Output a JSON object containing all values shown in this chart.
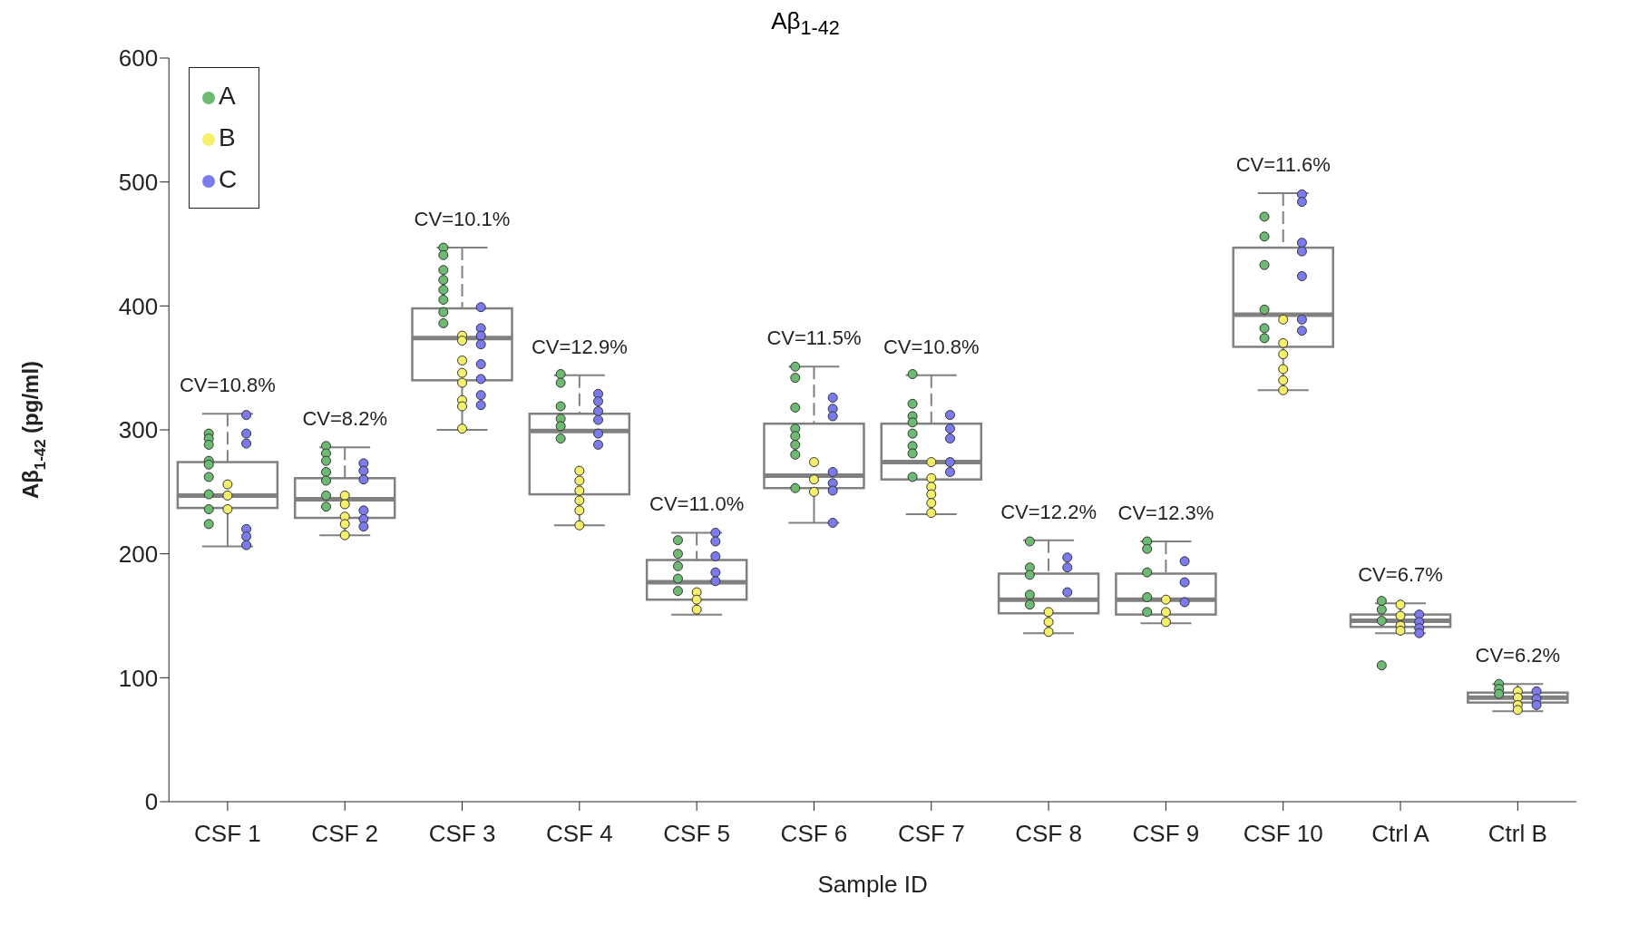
{
  "chart_data": {
    "type": "box",
    "title": "Aβ$_{1-42}$",
    "xlabel": "Sample ID",
    "ylabel": "Aβ$_{1-42}$ (pg/ml)",
    "categories": [
      "CSF 1",
      "CSF 2",
      "CSF 3",
      "CSF 4",
      "CSF 5",
      "CSF 6",
      "CSF 7",
      "CSF 8",
      "CSF 9",
      "CSF 10",
      "Ctrl A",
      "Ctrl B"
    ],
    "boxes": [
      {
        "low": 206,
        "q1": 237,
        "median": 247,
        "q3": 274,
        "high": 313
      },
      {
        "low": 215,
        "q1": 229,
        "median": 244,
        "q3": 261,
        "high": 286
      },
      {
        "low": 300,
        "q1": 340,
        "median": 374,
        "q3": 398,
        "high": 447
      },
      {
        "low": 223,
        "q1": 248,
        "median": 299,
        "q3": 313,
        "high": 344
      },
      {
        "low": 151,
        "q1": 163,
        "median": 177,
        "q3": 195,
        "high": 217
      },
      {
        "low": 225,
        "q1": 253,
        "median": 263,
        "q3": 305,
        "high": 351
      },
      {
        "low": 232,
        "q1": 260,
        "median": 274,
        "q3": 305,
        "high": 344
      },
      {
        "low": 136,
        "q1": 152,
        "median": 163,
        "q3": 184,
        "high": 211
      },
      {
        "low": 144,
        "q1": 151,
        "median": 163,
        "q3": 184,
        "high": 210
      },
      {
        "low": 332,
        "q1": 367,
        "median": 393,
        "q3": 447,
        "high": 491
      },
      {
        "low": 136,
        "q1": 141,
        "median": 146,
        "q3": 151,
        "high": 160
      },
      {
        "low": 73,
        "q1": 80,
        "median": 84,
        "q3": 88,
        "high": 95
      }
    ],
    "series": [
      {
        "name": "A",
        "type": "scatter",
        "color": "#6dbb73",
        "x": [
          "CSF 1",
          "CSF 1",
          "CSF 1",
          "CSF 1",
          "CSF 1",
          "CSF 1",
          "CSF 1",
          "CSF 1",
          "CSF 1",
          "CSF 2",
          "CSF 2",
          "CSF 2",
          "CSF 2",
          "CSF 2",
          "CSF 2",
          "CSF 2",
          "CSF 3",
          "CSF 3",
          "CSF 3",
          "CSF 3",
          "CSF 3",
          "CSF 3",
          "CSF 3",
          "CSF 3",
          "CSF 4",
          "CSF 4",
          "CSF 4",
          "CSF 4",
          "CSF 4",
          "CSF 4",
          "CSF 5",
          "CSF 5",
          "CSF 5",
          "CSF 5",
          "CSF 5",
          "CSF 6",
          "CSF 6",
          "CSF 6",
          "CSF 6",
          "CSF 6",
          "CSF 6",
          "CSF 6",
          "CSF 6",
          "CSF 7",
          "CSF 7",
          "CSF 7",
          "CSF 7",
          "CSF 7",
          "CSF 7",
          "CSF 7",
          "CSF 7",
          "CSF 8",
          "CSF 8",
          "CSF 8",
          "CSF 8",
          "CSF 8",
          "CSF 9",
          "CSF 9",
          "CSF 9",
          "CSF 9",
          "CSF 9",
          "CSF 10",
          "CSF 10",
          "CSF 10",
          "CSF 10",
          "CSF 10",
          "CSF 10",
          "Ctrl A",
          "Ctrl A",
          "Ctrl A",
          "Ctrl A",
          "Ctrl B",
          "Ctrl B",
          "Ctrl B"
        ],
        "values": [
          297,
          293,
          288,
          275,
          272,
          262,
          248,
          236,
          224,
          287,
          281,
          275,
          266,
          259,
          247,
          238,
          447,
          441,
          429,
          421,
          413,
          405,
          395,
          386,
          345,
          338,
          319,
          309,
          303,
          293,
          211,
          200,
          190,
          180,
          170,
          351,
          342,
          318,
          301,
          295,
          288,
          280,
          253,
          345,
          321,
          311,
          306,
          297,
          287,
          281,
          262,
          210,
          189,
          183,
          167,
          159,
          210,
          204,
          185,
          165,
          153,
          472,
          456,
          433,
          397,
          382,
          374,
          162,
          155,
          146,
          110,
          95,
          91,
          87
        ]
      },
      {
        "name": "B",
        "type": "scatter",
        "color": "#f5ef6a",
        "x": [
          "CSF 1",
          "CSF 1",
          "CSF 1",
          "CSF 2",
          "CSF 2",
          "CSF 2",
          "CSF 2",
          "CSF 2",
          "CSF 3",
          "CSF 3",
          "CSF 3",
          "CSF 3",
          "CSF 3",
          "CSF 3",
          "CSF 3",
          "CSF 3",
          "CSF 4",
          "CSF 4",
          "CSF 4",
          "CSF 4",
          "CSF 4",
          "CSF 4",
          "CSF 5",
          "CSF 5",
          "CSF 5",
          "CSF 6",
          "CSF 6",
          "CSF 6",
          "CSF 7",
          "CSF 7",
          "CSF 7",
          "CSF 7",
          "CSF 7",
          "CSF 7",
          "CSF 8",
          "CSF 8",
          "CSF 8",
          "CSF 9",
          "CSF 9",
          "CSF 9",
          "CSF 10",
          "CSF 10",
          "CSF 10",
          "CSF 10",
          "CSF 10",
          "CSF 10",
          "Ctrl A",
          "Ctrl A",
          "Ctrl A",
          "Ctrl A",
          "Ctrl B",
          "Ctrl B",
          "Ctrl B",
          "Ctrl B"
        ],
        "values": [
          256,
          247,
          236,
          247,
          240,
          230,
          224,
          215,
          376,
          372,
          356,
          346,
          338,
          324,
          319,
          301,
          267,
          259,
          251,
          243,
          235,
          223,
          169,
          163,
          155,
          274,
          260,
          250,
          274,
          261,
          254,
          248,
          241,
          233,
          153,
          145,
          137,
          163,
          153,
          145,
          389,
          370,
          361,
          349,
          340,
          332,
          159,
          150,
          142,
          138,
          89,
          84,
          78,
          74
        ]
      },
      {
        "name": "C",
        "type": "scatter",
        "color": "#7b7bef",
        "x": [
          "CSF 1",
          "CSF 1",
          "CSF 1",
          "CSF 1",
          "CSF 1",
          "CSF 1",
          "CSF 2",
          "CSF 2",
          "CSF 2",
          "CSF 2",
          "CSF 2",
          "CSF 2",
          "CSF 3",
          "CSF 3",
          "CSF 3",
          "CSF 3",
          "CSF 3",
          "CSF 3",
          "CSF 3",
          "CSF 3",
          "CSF 4",
          "CSF 4",
          "CSF 4",
          "CSF 4",
          "CSF 4",
          "CSF 4",
          "CSF 5",
          "CSF 5",
          "CSF 5",
          "CSF 5",
          "CSF 5",
          "CSF 6",
          "CSF 6",
          "CSF 6",
          "CSF 6",
          "CSF 6",
          "CSF 6",
          "CSF 6",
          "CSF 7",
          "CSF 7",
          "CSF 7",
          "CSF 7",
          "CSF 7",
          "CSF 8",
          "CSF 8",
          "CSF 8",
          "CSF 9",
          "CSF 9",
          "CSF 9",
          "CSF 10",
          "CSF 10",
          "CSF 10",
          "CSF 10",
          "CSF 10",
          "CSF 10",
          "CSF 10",
          "Ctrl A",
          "Ctrl A",
          "Ctrl A",
          "Ctrl A",
          "Ctrl B",
          "Ctrl B",
          "Ctrl B"
        ],
        "values": [
          312,
          297,
          289,
          220,
          214,
          207,
          273,
          267,
          260,
          235,
          228,
          222,
          399,
          382,
          376,
          369,
          353,
          341,
          328,
          320,
          329,
          323,
          315,
          308,
          297,
          288,
          217,
          210,
          198,
          185,
          178,
          326,
          317,
          311,
          266,
          257,
          251,
          225,
          312,
          301,
          293,
          274,
          266,
          197,
          189,
          169,
          194,
          177,
          161,
          490,
          484,
          451,
          444,
          424,
          389,
          380,
          151,
          145,
          140,
          136,
          89,
          83,
          78
        ]
      }
    ],
    "ylim": [
      0,
      600
    ],
    "yticks": [
      0,
      100,
      200,
      300,
      400,
      500,
      600
    ],
    "legend": "top left",
    "marker": "circle",
    "grid": false,
    "annotations": [
      "CV=10.8%",
      "CV=8.2%",
      "CV=10.1%",
      "CV=12.9%",
      "CV=11.0%",
      "CV=11.5%",
      "CV=10.8%",
      "CV=12.2%",
      "CV=12.3%",
      "CV=11.6%",
      "CV=6.7%",
      "CV=6.2%"
    ]
  }
}
